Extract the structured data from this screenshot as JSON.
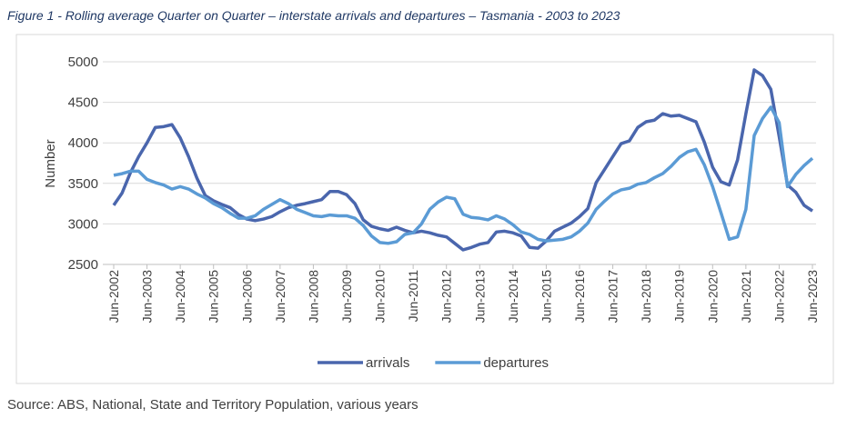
{
  "chart_data": {
    "type": "line",
    "title": "Figure 1 - Rolling average Quarter on Quarter – interstate arrivals and departures – Tasmania - 2003 to 2023",
    "source": "Source: ABS, National, State and Territory Population, various years",
    "ylabel": "Number",
    "categories": [
      "Jun-2002",
      null,
      null,
      null,
      "Jun-2003",
      null,
      null,
      null,
      "Jun-2004",
      null,
      null,
      null,
      "Jun-2005",
      null,
      null,
      null,
      "Jun-2006",
      null,
      null,
      null,
      "Jun-2007",
      null,
      null,
      null,
      "Jun-2008",
      null,
      null,
      null,
      "Jun-2009",
      null,
      null,
      null,
      "Jun-2010",
      null,
      null,
      null,
      "Jun-2011",
      null,
      null,
      null,
      "Jun-2012",
      null,
      null,
      null,
      "Jun-2013",
      null,
      null,
      null,
      "Jun-2014",
      null,
      null,
      null,
      "Jun-2015",
      null,
      null,
      null,
      "Jun-2016",
      null,
      null,
      null,
      "Jun-2017",
      null,
      null,
      null,
      "Jun-2018",
      null,
      null,
      null,
      "Jun-2019",
      null,
      null,
      null,
      "Jun-2020",
      null,
      null,
      null,
      "Jun-2021",
      null,
      null,
      null,
      "Jun-2022",
      null,
      null,
      null,
      "Jun-2023"
    ],
    "series": [
      {
        "name": "arrivals",
        "color": "#4a66ad",
        "values": [
          3230,
          3380,
          3630,
          3830,
          4000,
          4190,
          4200,
          4225,
          4060,
          3830,
          3565,
          3350,
          3285,
          3240,
          3200,
          3115,
          3060,
          3040,
          3060,
          3090,
          3150,
          3200,
          3230,
          3250,
          3275,
          3300,
          3400,
          3400,
          3360,
          3250,
          3050,
          2970,
          2940,
          2920,
          2960,
          2920,
          2890,
          2910,
          2890,
          2860,
          2840,
          2760,
          2680,
          2710,
          2750,
          2770,
          2900,
          2910,
          2890,
          2850,
          2710,
          2700,
          2790,
          2910,
          2960,
          3010,
          3090,
          3190,
          3510,
          3670,
          3830,
          3990,
          4025,
          4190,
          4260,
          4280,
          4360,
          4330,
          4340,
          4300,
          4260,
          4010,
          3700,
          3520,
          3480,
          3790,
          4360,
          4900,
          4830,
          4660,
          4080,
          3480,
          3390,
          3230,
          3160
        ]
      },
      {
        "name": "departures",
        "color": "#5b9bd5",
        "values": [
          3600,
          3620,
          3650,
          3650,
          3550,
          3510,
          3480,
          3430,
          3460,
          3430,
          3370,
          3320,
          3250,
          3200,
          3130,
          3070,
          3070,
          3100,
          3180,
          3240,
          3300,
          3250,
          3180,
          3140,
          3100,
          3090,
          3110,
          3100,
          3100,
          3070,
          2980,
          2850,
          2770,
          2760,
          2780,
          2870,
          2890,
          3000,
          3180,
          3270,
          3330,
          3310,
          3120,
          3080,
          3070,
          3050,
          3100,
          3060,
          2990,
          2900,
          2870,
          2810,
          2790,
          2800,
          2810,
          2840,
          2910,
          3010,
          3180,
          3280,
          3370,
          3420,
          3440,
          3490,
          3510,
          3570,
          3620,
          3710,
          3820,
          3890,
          3920,
          3730,
          3460,
          3140,
          2810,
          2840,
          3180,
          4090,
          4300,
          4440,
          4250,
          3460,
          3610,
          3720,
          3810
        ]
      }
    ],
    "ylim": [
      2500,
      5000
    ],
    "yticks": [
      2500,
      3000,
      3500,
      4000,
      4500,
      5000
    ],
    "grid": true,
    "legend": "bottom"
  }
}
